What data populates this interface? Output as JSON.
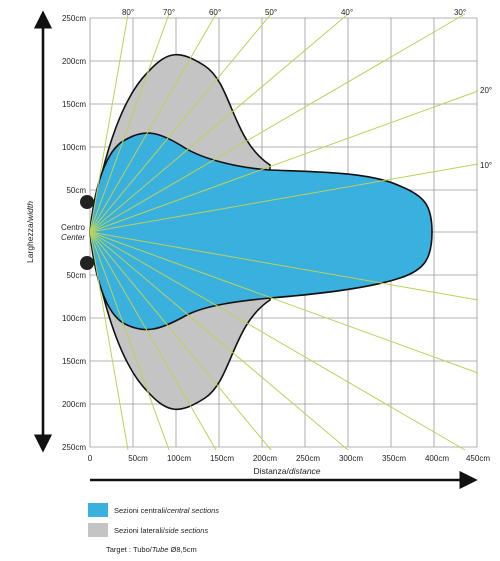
{
  "colors": {
    "central": "#3ab0de",
    "lateral": "#c3c4c3",
    "rays": "#b9d35a",
    "grid": "#9a9a9a"
  },
  "angle_labels": [
    "80°",
    "70°",
    "60°",
    "50°",
    "40°",
    "30°",
    "20°",
    "10°"
  ],
  "y_ticks_top": [
    "250cm",
    "200cm",
    "150cm",
    "100cm",
    "50cm"
  ],
  "y_ticks_bottom": [
    "50cm",
    "100cm",
    "150cm",
    "200cm",
    "250cm"
  ],
  "center_label": {
    "line1": "Centro",
    "line2": "Center"
  },
  "x_ticks": [
    "0",
    "50cm",
    "100cm",
    "150cm",
    "200cm",
    "250cm",
    "300cm",
    "350cm",
    "400cm",
    "450cm"
  ],
  "x_axis_label": {
    "main": "Distanza/",
    "italic": "distance"
  },
  "y_axis_label": {
    "main": "Larghezza/",
    "italic": "width"
  },
  "legend": {
    "central": {
      "main": "Sezioni centrali/",
      "italic": "central sections"
    },
    "lateral": {
      "main": "Sezioni laterali/",
      "italic": "side sections"
    },
    "target": {
      "main": "Target : Tubo/",
      "italic": "Tube",
      "rest": " Ø8,5cm"
    }
  }
}
